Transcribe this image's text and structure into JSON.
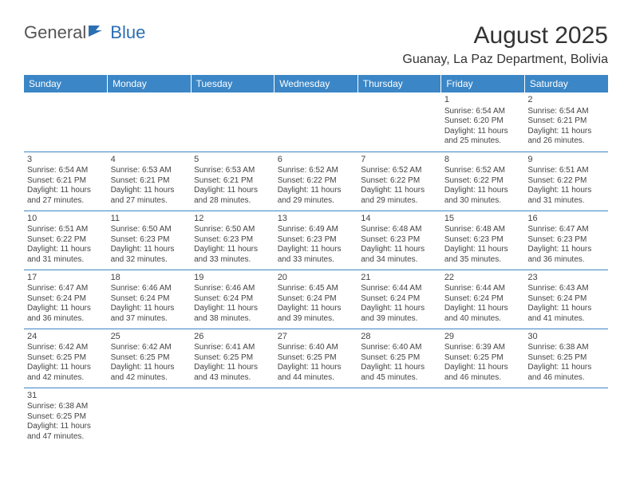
{
  "header": {
    "logo_general": "General",
    "logo_blue": "Blue",
    "month_title": "August 2025",
    "location": "Guanay, La Paz Department, Bolivia"
  },
  "colors": {
    "header_bg": "#3b86c6",
    "header_text": "#ffffff",
    "cell_border": "#3b86c6",
    "text": "#444444",
    "logo_blue": "#2b6fb3"
  },
  "weekdays": [
    "Sunday",
    "Monday",
    "Tuesday",
    "Wednesday",
    "Thursday",
    "Friday",
    "Saturday"
  ],
  "weeks": [
    [
      null,
      null,
      null,
      null,
      null,
      {
        "n": "1",
        "sunrise": "6:54 AM",
        "sunset": "6:20 PM",
        "daylight": "11 hours and 25 minutes."
      },
      {
        "n": "2",
        "sunrise": "6:54 AM",
        "sunset": "6:21 PM",
        "daylight": "11 hours and 26 minutes."
      }
    ],
    [
      {
        "n": "3",
        "sunrise": "6:54 AM",
        "sunset": "6:21 PM",
        "daylight": "11 hours and 27 minutes."
      },
      {
        "n": "4",
        "sunrise": "6:53 AM",
        "sunset": "6:21 PM",
        "daylight": "11 hours and 27 minutes."
      },
      {
        "n": "5",
        "sunrise": "6:53 AM",
        "sunset": "6:21 PM",
        "daylight": "11 hours and 28 minutes."
      },
      {
        "n": "6",
        "sunrise": "6:52 AM",
        "sunset": "6:22 PM",
        "daylight": "11 hours and 29 minutes."
      },
      {
        "n": "7",
        "sunrise": "6:52 AM",
        "sunset": "6:22 PM",
        "daylight": "11 hours and 29 minutes."
      },
      {
        "n": "8",
        "sunrise": "6:52 AM",
        "sunset": "6:22 PM",
        "daylight": "11 hours and 30 minutes."
      },
      {
        "n": "9",
        "sunrise": "6:51 AM",
        "sunset": "6:22 PM",
        "daylight": "11 hours and 31 minutes."
      }
    ],
    [
      {
        "n": "10",
        "sunrise": "6:51 AM",
        "sunset": "6:22 PM",
        "daylight": "11 hours and 31 minutes."
      },
      {
        "n": "11",
        "sunrise": "6:50 AM",
        "sunset": "6:23 PM",
        "daylight": "11 hours and 32 minutes."
      },
      {
        "n": "12",
        "sunrise": "6:50 AM",
        "sunset": "6:23 PM",
        "daylight": "11 hours and 33 minutes."
      },
      {
        "n": "13",
        "sunrise": "6:49 AM",
        "sunset": "6:23 PM",
        "daylight": "11 hours and 33 minutes."
      },
      {
        "n": "14",
        "sunrise": "6:48 AM",
        "sunset": "6:23 PM",
        "daylight": "11 hours and 34 minutes."
      },
      {
        "n": "15",
        "sunrise": "6:48 AM",
        "sunset": "6:23 PM",
        "daylight": "11 hours and 35 minutes."
      },
      {
        "n": "16",
        "sunrise": "6:47 AM",
        "sunset": "6:23 PM",
        "daylight": "11 hours and 36 minutes."
      }
    ],
    [
      {
        "n": "17",
        "sunrise": "6:47 AM",
        "sunset": "6:24 PM",
        "daylight": "11 hours and 36 minutes."
      },
      {
        "n": "18",
        "sunrise": "6:46 AM",
        "sunset": "6:24 PM",
        "daylight": "11 hours and 37 minutes."
      },
      {
        "n": "19",
        "sunrise": "6:46 AM",
        "sunset": "6:24 PM",
        "daylight": "11 hours and 38 minutes."
      },
      {
        "n": "20",
        "sunrise": "6:45 AM",
        "sunset": "6:24 PM",
        "daylight": "11 hours and 39 minutes."
      },
      {
        "n": "21",
        "sunrise": "6:44 AM",
        "sunset": "6:24 PM",
        "daylight": "11 hours and 39 minutes."
      },
      {
        "n": "22",
        "sunrise": "6:44 AM",
        "sunset": "6:24 PM",
        "daylight": "11 hours and 40 minutes."
      },
      {
        "n": "23",
        "sunrise": "6:43 AM",
        "sunset": "6:24 PM",
        "daylight": "11 hours and 41 minutes."
      }
    ],
    [
      {
        "n": "24",
        "sunrise": "6:42 AM",
        "sunset": "6:25 PM",
        "daylight": "11 hours and 42 minutes."
      },
      {
        "n": "25",
        "sunrise": "6:42 AM",
        "sunset": "6:25 PM",
        "daylight": "11 hours and 42 minutes."
      },
      {
        "n": "26",
        "sunrise": "6:41 AM",
        "sunset": "6:25 PM",
        "daylight": "11 hours and 43 minutes."
      },
      {
        "n": "27",
        "sunrise": "6:40 AM",
        "sunset": "6:25 PM",
        "daylight": "11 hours and 44 minutes."
      },
      {
        "n": "28",
        "sunrise": "6:40 AM",
        "sunset": "6:25 PM",
        "daylight": "11 hours and 45 minutes."
      },
      {
        "n": "29",
        "sunrise": "6:39 AM",
        "sunset": "6:25 PM",
        "daylight": "11 hours and 46 minutes."
      },
      {
        "n": "30",
        "sunrise": "6:38 AM",
        "sunset": "6:25 PM",
        "daylight": "11 hours and 46 minutes."
      }
    ],
    [
      {
        "n": "31",
        "sunrise": "6:38 AM",
        "sunset": "6:25 PM",
        "daylight": "11 hours and 47 minutes."
      },
      null,
      null,
      null,
      null,
      null,
      null
    ]
  ],
  "labels": {
    "sunrise": "Sunrise: ",
    "sunset": "Sunset: ",
    "daylight": "Daylight: "
  }
}
